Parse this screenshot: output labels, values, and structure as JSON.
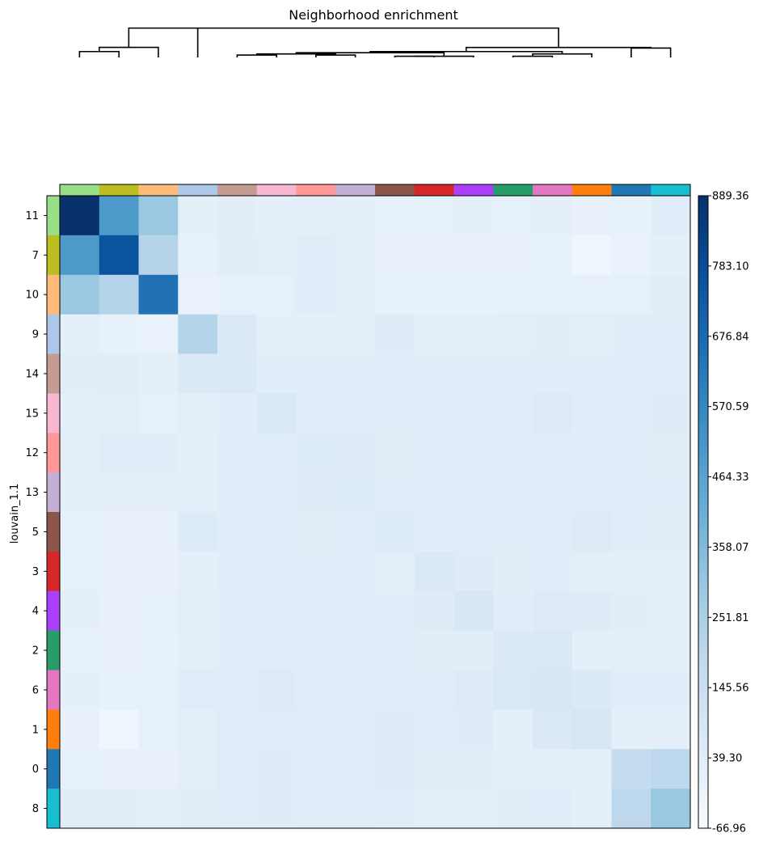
{
  "chart_data": {
    "type": "heatmap",
    "title": "Neighborhood enrichment",
    "ylabel": "louvain_1.1",
    "xlabel": "",
    "categories": [
      "11",
      "7",
      "10",
      "9",
      "14",
      "15",
      "12",
      "13",
      "5",
      "3",
      "4",
      "2",
      "6",
      "1",
      "0",
      "8"
    ],
    "category_colors": [
      "#98df8a",
      "#bcbd22",
      "#ffbb78",
      "#aec7e8",
      "#c49c94",
      "#f7b6d2",
      "#ff9896",
      "#c5b0d5",
      "#8c564b",
      "#d62728",
      "#aa40fc",
      "#279e68",
      "#e377c2",
      "#ff7f0e",
      "#1f77b4",
      "#17becf"
    ],
    "values": [
      [
        889,
        500,
        300,
        20,
        35,
        25,
        30,
        25,
        15,
        15,
        20,
        15,
        20,
        5,
        10,
        40
      ],
      [
        500,
        760,
        220,
        10,
        35,
        30,
        45,
        30,
        5,
        5,
        5,
        5,
        10,
        -30,
        0,
        20
      ],
      [
        300,
        220,
        650,
        0,
        10,
        15,
        40,
        20,
        10,
        10,
        10,
        15,
        15,
        15,
        15,
        35
      ],
      [
        20,
        10,
        0,
        220,
        70,
        20,
        25,
        20,
        50,
        25,
        25,
        30,
        35,
        30,
        40,
        40
      ],
      [
        35,
        35,
        20,
        70,
        70,
        40,
        40,
        40,
        40,
        40,
        40,
        40,
        40,
        40,
        40,
        40
      ],
      [
        25,
        30,
        15,
        30,
        40,
        75,
        45,
        45,
        45,
        45,
        45,
        45,
        55,
        45,
        45,
        50
      ],
      [
        30,
        45,
        40,
        25,
        40,
        45,
        60,
        50,
        35,
        40,
        40,
        40,
        40,
        40,
        40,
        35
      ],
      [
        25,
        30,
        20,
        20,
        40,
        45,
        50,
        60,
        40,
        45,
        45,
        45,
        45,
        40,
        40,
        40
      ],
      [
        15,
        5,
        5,
        60,
        40,
        45,
        35,
        40,
        60,
        40,
        40,
        45,
        45,
        55,
        45,
        35
      ],
      [
        15,
        5,
        5,
        25,
        40,
        45,
        40,
        45,
        30,
        70,
        50,
        35,
        40,
        30,
        30,
        30
      ],
      [
        20,
        5,
        15,
        30,
        40,
        45,
        40,
        45,
        40,
        50,
        80,
        40,
        55,
        50,
        35,
        30
      ],
      [
        15,
        5,
        10,
        30,
        40,
        45,
        40,
        45,
        45,
        35,
        35,
        70,
        75,
        25,
        30,
        30
      ],
      [
        20,
        10,
        15,
        45,
        45,
        55,
        40,
        45,
        45,
        40,
        55,
        75,
        80,
        70,
        40,
        40
      ],
      [
        5,
        -30,
        15,
        30,
        45,
        45,
        40,
        40,
        55,
        40,
        50,
        25,
        70,
        90,
        25,
        25
      ],
      [
        10,
        5,
        5,
        30,
        45,
        50,
        40,
        40,
        50,
        35,
        35,
        30,
        30,
        25,
        175,
        200
      ],
      [
        35,
        35,
        30,
        35,
        45,
        50,
        40,
        40,
        45,
        25,
        30,
        35,
        40,
        25,
        200,
        300
      ]
    ],
    "colorbar": {
      "colormap": "Blues",
      "min": -66.96,
      "max": 889.36,
      "ticks": [
        "889.36",
        "783.10",
        "676.84",
        "570.59",
        "464.33",
        "358.07",
        "251.81",
        "145.56",
        "39.30",
        "-66.96"
      ]
    },
    "dendrogram": {
      "orientation": "top",
      "linkage_heights": [
        5,
        4,
        4,
        2,
        3,
        2,
        1,
        1,
        4,
        1,
        3,
        2,
        8,
        25,
        21
      ]
    },
    "grid": false
  }
}
